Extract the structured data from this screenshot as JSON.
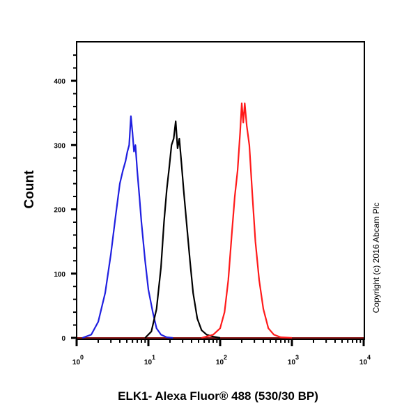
{
  "chart_data": {
    "type": "line",
    "title": "",
    "xlabel": "ELK1- Alexa Fluor® 488 (530/30 BP)",
    "ylabel": "Count",
    "xscale": "log",
    "xlim": [
      1,
      10000
    ],
    "ylim": [
      0,
      450
    ],
    "x_ticks": [
      {
        "value": 1,
        "base": "10",
        "exp": "0"
      },
      {
        "value": 10,
        "base": "10",
        "exp": "1"
      },
      {
        "value": 100,
        "base": "10",
        "exp": "2"
      },
      {
        "value": 1000,
        "base": "10",
        "exp": "3"
      },
      {
        "value": 10000,
        "base": "10",
        "exp": "4"
      }
    ],
    "y_ticks": [
      0,
      100,
      200,
      300,
      400
    ],
    "grid": false,
    "legend": null,
    "annotations": [
      "Copyright (c) 2016 Abcam Plc"
    ],
    "series": [
      {
        "name": "blue",
        "color": "#1f1fe0",
        "x": [
          1.2,
          1.6,
          2.0,
          2.5,
          3.0,
          3.5,
          4.0,
          4.4,
          4.8,
          5.1,
          5.4,
          5.7,
          6.0,
          6.3,
          6.6,
          7.0,
          7.5,
          8.0,
          9.0,
          10.0,
          11.5,
          13.0,
          15.0,
          18.0,
          22.0
        ],
        "y": [
          0,
          5,
          25,
          70,
          130,
          190,
          240,
          260,
          275,
          290,
          300,
          345,
          320,
          290,
          300,
          260,
          220,
          180,
          120,
          75,
          40,
          15,
          5,
          1,
          0
        ]
      },
      {
        "name": "black",
        "color": "#000000",
        "x": [
          9.0,
          11.0,
          13.0,
          15.0,
          16.5,
          18.0,
          19.5,
          21.0,
          22.5,
          24.0,
          25.5,
          27.0,
          29.0,
          31.0,
          34.0,
          38.0,
          42.0,
          48.0,
          55.0,
          65.0,
          80.0,
          100.0
        ],
        "y": [
          0,
          10,
          45,
          110,
          180,
          230,
          265,
          300,
          310,
          337,
          295,
          310,
          270,
          230,
          180,
          120,
          70,
          30,
          12,
          5,
          2,
          0
        ]
      },
      {
        "name": "red",
        "color": "#ff1a1a",
        "x": [
          55.0,
          80.0,
          100.0,
          115.0,
          130.0,
          145.0,
          160.0,
          175.0,
          190.0,
          200.0,
          210.0,
          220.0,
          235.0,
          255.0,
          280.0,
          310.0,
          350.0,
          400.0,
          470.0,
          560.0,
          700.0,
          1000.0
        ],
        "y": [
          0,
          5,
          15,
          40,
          90,
          160,
          220,
          260,
          320,
          365,
          335,
          365,
          330,
          300,
          225,
          150,
          90,
          45,
          15,
          5,
          1,
          0
        ]
      }
    ]
  }
}
